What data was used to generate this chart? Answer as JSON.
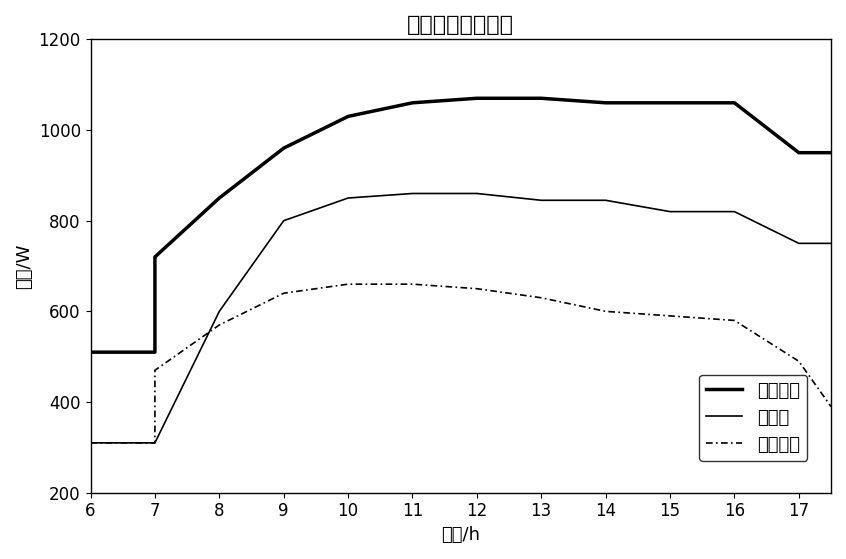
{
  "title": "负荷功率预测区间",
  "xlabel": "时间/h",
  "ylabel": "功率/W",
  "xlim": [
    6,
    17.5
  ],
  "ylim": [
    200,
    1200
  ],
  "xticks": [
    6,
    7,
    8,
    9,
    10,
    11,
    12,
    13,
    14,
    15,
    16,
    17
  ],
  "yticks": [
    200,
    400,
    600,
    800,
    1000,
    1200
  ],
  "upper_x": [
    6,
    7,
    7,
    8,
    9,
    10,
    11,
    12,
    13,
    14,
    16,
    17,
    17.5
  ],
  "upper_y": [
    510,
    510,
    720,
    850,
    960,
    1030,
    1060,
    1070,
    1070,
    1060,
    1060,
    950,
    950
  ],
  "mid_x": [
    6,
    7,
    8,
    9,
    10,
    11,
    12,
    13,
    14,
    15,
    16,
    17,
    17.5
  ],
  "mid_y": [
    310,
    310,
    600,
    800,
    850,
    860,
    860,
    845,
    845,
    820,
    820,
    750,
    750
  ],
  "lower_x": [
    6,
    7,
    7,
    8,
    9,
    10,
    11,
    12,
    13,
    14,
    16,
    17,
    17.5
  ],
  "lower_y": [
    310,
    310,
    470,
    570,
    640,
    660,
    660,
    650,
    630,
    600,
    580,
    490,
    390
  ],
  "upper_label": "功率上限",
  "mid_label": "预测值",
  "lower_label": "功率下限",
  "upper_color": "#000000",
  "mid_color": "#000000",
  "lower_color": "#000000",
  "upper_lw": 2.5,
  "mid_lw": 1.2,
  "lower_lw": 1.2,
  "title_fontsize": 16,
  "label_fontsize": 13,
  "tick_fontsize": 12,
  "legend_fontsize": 13
}
